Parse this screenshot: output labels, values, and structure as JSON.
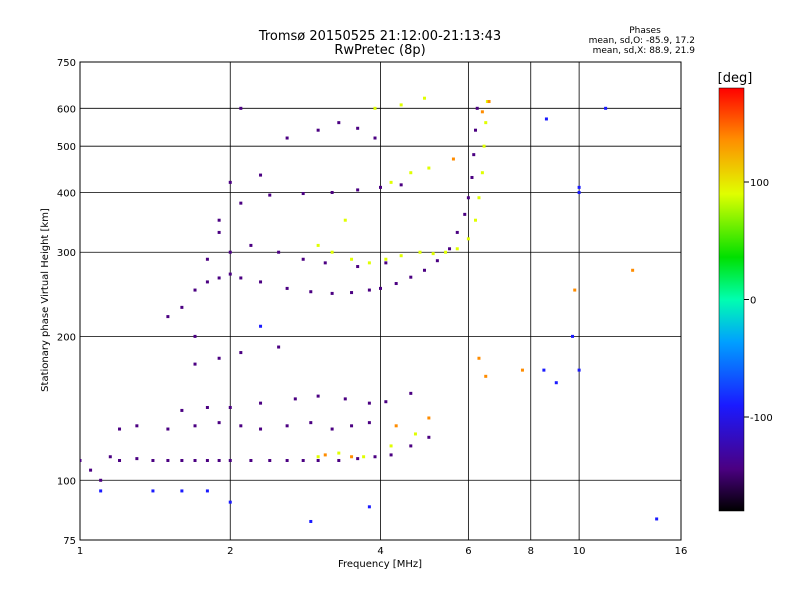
{
  "chart_data": {
    "type": "scatter",
    "title": "Tromsø 20150525 21:12:00-21:13:43",
    "subtitle": "RwPretec (8p)",
    "stats": {
      "heading": "Phases",
      "line1": "mean, sd,O: -85.9, 17.2",
      "line2": "mean, sd,X:  88.9, 21.9"
    },
    "xlabel": "Frequency [MHz]",
    "ylabel": "Stationary phase Virtual Height [km]",
    "x_scale": "log",
    "y_scale": "log",
    "xlim": [
      1,
      16
    ],
    "ylim": [
      75,
      750
    ],
    "x_ticks": [
      1,
      2,
      4,
      6,
      8,
      10,
      16
    ],
    "x_tick_labels": [
      "1",
      "2",
      "4",
      "6",
      "8",
      "10",
      "16"
    ],
    "y_ticks": [
      75,
      100,
      200,
      300,
      400,
      500,
      600,
      750
    ],
    "y_tick_labels": [
      "75",
      "100",
      "200",
      "300",
      "400",
      "500",
      "600",
      "750"
    ],
    "grid": true,
    "colorbar": {
      "label": "[deg]",
      "range": [
        -180,
        180
      ],
      "ticks": [
        100,
        0,
        -100
      ],
      "tick_labels": [
        "100",
        "0",
        "-100"
      ]
    },
    "series": [
      {
        "id": "o-mode-low-sporadic",
        "phase": -100,
        "points": [
          [
            1.0,
            110
          ],
          [
            1.05,
            105
          ],
          [
            1.1,
            100
          ],
          [
            1.15,
            112
          ],
          [
            1.2,
            110
          ],
          [
            1.3,
            111
          ],
          [
            1.4,
            110
          ],
          [
            1.5,
            110
          ],
          [
            1.6,
            110
          ],
          [
            1.7,
            110
          ],
          [
            1.8,
            110
          ],
          [
            1.9,
            110
          ],
          [
            2.0,
            110
          ],
          [
            2.2,
            110
          ],
          [
            2.4,
            110
          ],
          [
            2.6,
            110
          ],
          [
            2.8,
            110
          ],
          [
            3.0,
            110
          ],
          [
            3.3,
            110
          ],
          [
            3.6,
            111
          ],
          [
            3.9,
            112
          ],
          [
            4.2,
            113
          ],
          [
            4.6,
            118
          ],
          [
            5.0,
            123
          ],
          [
            1.2,
            128
          ],
          [
            1.3,
            130
          ],
          [
            1.5,
            128
          ],
          [
            1.7,
            130
          ],
          [
            1.9,
            132
          ],
          [
            2.1,
            130
          ],
          [
            2.3,
            128
          ],
          [
            2.6,
            130
          ],
          [
            2.9,
            132
          ],
          [
            3.2,
            128
          ],
          [
            3.5,
            130
          ],
          [
            3.8,
            132
          ],
          [
            1.6,
            140
          ],
          [
            1.8,
            142
          ],
          [
            2.0,
            142
          ],
          [
            2.3,
            145
          ],
          [
            2.7,
            148
          ],
          [
            3.0,
            150
          ],
          [
            3.4,
            148
          ],
          [
            3.8,
            145
          ],
          [
            4.1,
            146
          ],
          [
            4.6,
            152
          ],
          [
            1.7,
            175
          ],
          [
            1.9,
            180
          ],
          [
            2.1,
            185
          ],
          [
            2.5,
            190
          ]
        ]
      },
      {
        "id": "o-mode-f-trace",
        "phase": -95,
        "points": [
          [
            1.5,
            220
          ],
          [
            1.6,
            230
          ],
          [
            1.7,
            250
          ],
          [
            1.8,
            260
          ],
          [
            1.9,
            265
          ],
          [
            2.0,
            270
          ],
          [
            2.1,
            265
          ],
          [
            2.3,
            260
          ],
          [
            2.6,
            252
          ],
          [
            2.9,
            248
          ],
          [
            3.2,
            246
          ],
          [
            3.5,
            247
          ],
          [
            3.8,
            250
          ],
          [
            4.0,
            252
          ],
          [
            4.3,
            258
          ],
          [
            4.6,
            266
          ],
          [
            4.9,
            275
          ],
          [
            5.2,
            288
          ],
          [
            5.5,
            305
          ],
          [
            5.7,
            330
          ],
          [
            5.9,
            360
          ],
          [
            6.0,
            390
          ],
          [
            6.1,
            430
          ],
          [
            6.15,
            480
          ],
          [
            6.2,
            540
          ],
          [
            6.25,
            600
          ],
          [
            1.8,
            290
          ],
          [
            2.0,
            300
          ],
          [
            2.2,
            310
          ],
          [
            2.5,
            300
          ],
          [
            2.8,
            290
          ],
          [
            3.1,
            285
          ],
          [
            3.6,
            280
          ],
          [
            4.1,
            285
          ],
          [
            1.9,
            350
          ],
          [
            2.1,
            380
          ],
          [
            2.4,
            395
          ],
          [
            2.8,
            398
          ],
          [
            3.2,
            400
          ],
          [
            3.6,
            405
          ],
          [
            4.0,
            410
          ],
          [
            4.4,
            415
          ],
          [
            2.0,
            420
          ],
          [
            2.3,
            435
          ],
          [
            2.6,
            520
          ],
          [
            3.0,
            540
          ],
          [
            3.3,
            560
          ],
          [
            3.6,
            545
          ],
          [
            3.9,
            520
          ],
          [
            2.1,
            600
          ],
          [
            1.9,
            330
          ],
          [
            1.7,
            200
          ]
        ]
      },
      {
        "id": "x-mode-f-trace",
        "phase": 100,
        "points": [
          [
            3.0,
            310
          ],
          [
            3.2,
            300
          ],
          [
            3.5,
            290
          ],
          [
            3.8,
            285
          ],
          [
            4.1,
            290
          ],
          [
            4.4,
            295
          ],
          [
            4.8,
            300
          ],
          [
            5.1,
            298
          ],
          [
            5.4,
            300
          ],
          [
            5.7,
            305
          ],
          [
            6.0,
            320
          ],
          [
            6.2,
            350
          ],
          [
            6.3,
            390
          ],
          [
            6.4,
            440
          ],
          [
            6.45,
            500
          ],
          [
            6.5,
            560
          ],
          [
            6.55,
            620
          ],
          [
            3.4,
            350
          ],
          [
            4.2,
            420
          ],
          [
            4.6,
            440
          ],
          [
            5.0,
            450
          ],
          [
            3.0,
            112
          ],
          [
            3.3,
            114
          ],
          [
            3.7,
            112
          ],
          [
            4.2,
            118
          ],
          [
            4.7,
            125
          ],
          [
            3.9,
            600
          ],
          [
            4.4,
            610
          ],
          [
            4.9,
            630
          ]
        ]
      },
      {
        "id": "mixed-phase-scatter",
        "phase": 160,
        "points": [
          [
            3.1,
            113
          ],
          [
            3.5,
            112
          ],
          [
            4.3,
            130
          ],
          [
            5.0,
            135
          ],
          [
            6.3,
            180
          ],
          [
            6.5,
            165
          ],
          [
            6.6,
            620
          ],
          [
            6.4,
            590
          ],
          [
            5.6,
            470
          ],
          [
            7.7,
            170
          ],
          [
            9.8,
            250
          ],
          [
            12.8,
            275
          ]
        ]
      },
      {
        "id": "isolated-points",
        "phase": -60,
        "points": [
          [
            1.1,
            95
          ],
          [
            1.4,
            95
          ],
          [
            1.6,
            95
          ],
          [
            1.8,
            95
          ],
          [
            2.0,
            90
          ],
          [
            2.9,
            82
          ],
          [
            3.8,
            88
          ],
          [
            8.5,
            170
          ],
          [
            9.0,
            160
          ],
          [
            10.0,
            410
          ],
          [
            10.0,
            400
          ],
          [
            9.7,
            200
          ],
          [
            10.0,
            170
          ],
          [
            11.3,
            600
          ],
          [
            14.3,
            83
          ],
          [
            8.6,
            570
          ],
          [
            2.3,
            210
          ]
        ]
      }
    ]
  }
}
